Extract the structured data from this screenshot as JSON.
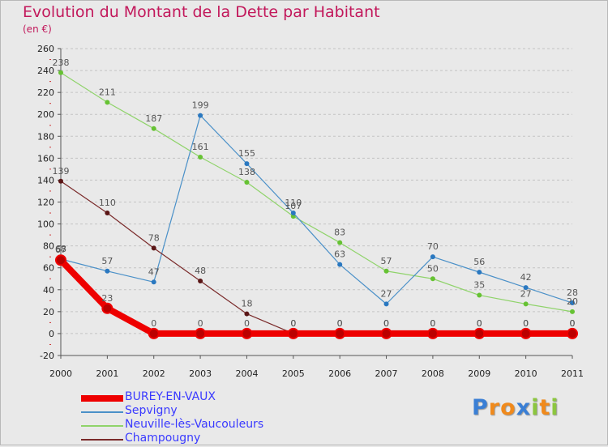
{
  "title": "Evolution du Montant de la Dette par Habitant",
  "subtitle": "(en €)",
  "logo": {
    "text": "Proxiti",
    "letters": [
      {
        "ch": "P",
        "color": "#3a7fd5"
      },
      {
        "ch": "r",
        "color": "#f08a1c"
      },
      {
        "ch": "o",
        "color": "#f08a1c"
      },
      {
        "ch": "x",
        "color": "#3a7fd5"
      },
      {
        "ch": "i",
        "color": "#8cc63f"
      },
      {
        "ch": "t",
        "color": "#f08a1c"
      },
      {
        "ch": "i",
        "color": "#8cc63f"
      }
    ]
  },
  "chart_data": {
    "type": "line",
    "title": "Evolution du Montant de la Dette par Habitant",
    "ylabel": "(en €)",
    "x": [
      "2000",
      "2001",
      "2002",
      "2003",
      "2004",
      "2005",
      "2006",
      "2007",
      "2008",
      "2009",
      "2010",
      "2011"
    ],
    "ylim": [
      -20,
      260
    ],
    "yticks": [
      -20,
      0,
      20,
      40,
      60,
      80,
      100,
      120,
      140,
      160,
      180,
      200,
      220,
      240,
      260
    ],
    "grid": "horizontal dashed",
    "legend_position": "bottom-left",
    "series": [
      {
        "name": "BUREY-EN-VAUX",
        "color": "#ee0000",
        "point_color": "#bb0000",
        "values": [
          67,
          23,
          0,
          0,
          0,
          0,
          0,
          0,
          0,
          0,
          0,
          0
        ]
      },
      {
        "name": "Sepvigny",
        "color": "#4a90c8",
        "point_color": "#2a78c0",
        "values": [
          68,
          57,
          47,
          199,
          155,
          110,
          63,
          27,
          70,
          56,
          42,
          28
        ]
      },
      {
        "name": "Neuville-lès-Vaucouleurs",
        "color": "#8fd36a",
        "point_color": "#66c233",
        "values": [
          238,
          211,
          187,
          161,
          138,
          107,
          83,
          57,
          50,
          35,
          27,
          20
        ]
      },
      {
        "name": "Champougny",
        "color": "#7a2a2a",
        "point_color": "#5a1616",
        "values": [
          139,
          110,
          78,
          48,
          18,
          0,
          0,
          0,
          0,
          0,
          0,
          0
        ]
      }
    ]
  }
}
